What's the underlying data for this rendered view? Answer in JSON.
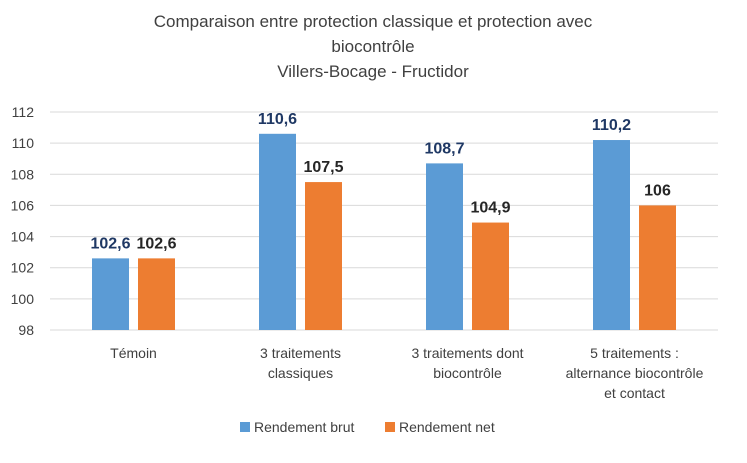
{
  "chart_data": {
    "type": "bar",
    "title_lines": [
      "Comparaison entre protection classique et protection avec",
      "biocontrôle",
      "Villers-Bocage - Fructidor"
    ],
    "categories": [
      [
        "Témoin"
      ],
      [
        "3 traitements",
        "classiques"
      ],
      [
        "3 traitements dont",
        "biocontrôle"
      ],
      [
        "5 traitements :",
        "alternance biocontrôle",
        "et contact"
      ]
    ],
    "series": [
      {
        "name": "Rendement brut",
        "values": [
          102.6,
          110.6,
          108.7,
          110.2
        ],
        "labels": [
          "102,6",
          "110,6",
          "108,7",
          "110,2"
        ],
        "color": "#5b9bd5",
        "label_color": "#1f3864"
      },
      {
        "name": "Rendement net",
        "values": [
          102.6,
          107.5,
          104.9,
          106.0
        ],
        "labels": [
          "102,6",
          "107,5",
          "104,9",
          "106"
        ],
        "color": "#ed7d31",
        "label_color": "#262626"
      }
    ],
    "ylim": [
      98,
      112
    ],
    "yticks": [
      "98",
      "100",
      "102",
      "104",
      "106",
      "108",
      "110",
      "112"
    ],
    "grid": true,
    "legend_position": "bottom"
  }
}
